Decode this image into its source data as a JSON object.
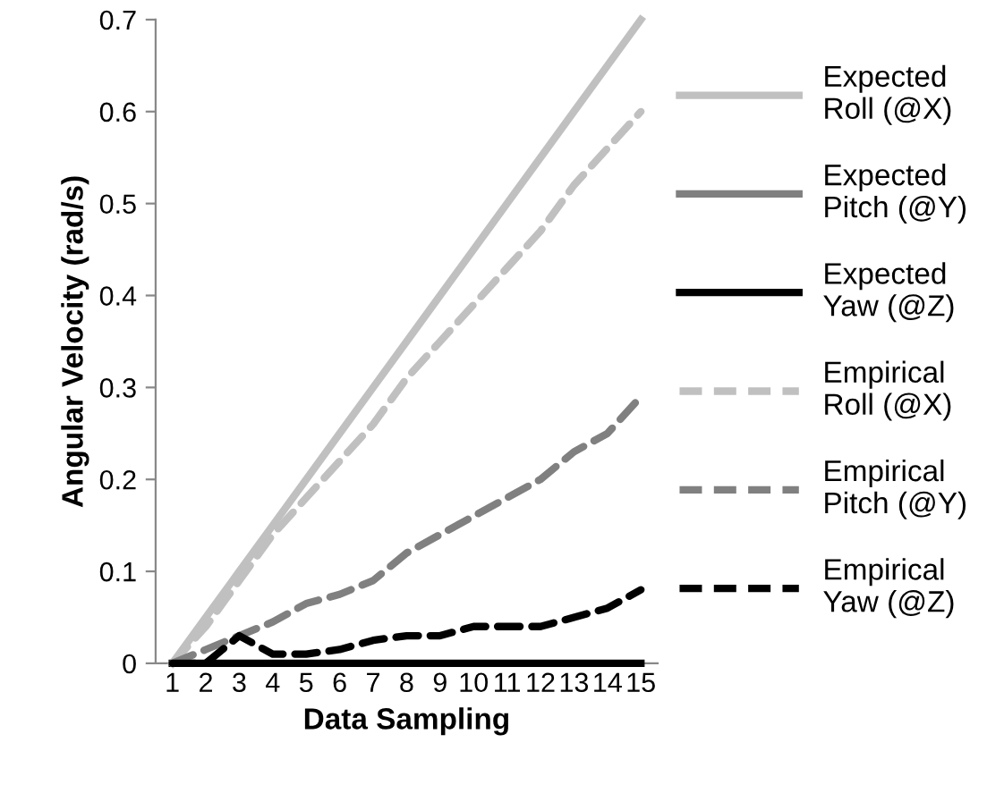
{
  "chart_data": {
    "type": "line",
    "xlabel": "Data Sampling",
    "ylabel": "Angular Velocity (rad/s)",
    "categories": [
      "1",
      "2",
      "3",
      "4",
      "5",
      "6",
      "7",
      "8",
      "9",
      "10",
      "11",
      "12",
      "13",
      "14",
      "15"
    ],
    "ylim": [
      0,
      0.7
    ],
    "yticks": [
      0,
      0.1,
      0.2,
      0.3,
      0.4,
      0.5,
      0.6,
      0.7
    ],
    "grid": false,
    "legend": "right",
    "marker": "none",
    "series": [
      {
        "name": "Expected\nRoll (@X)",
        "color": "#c0c0c0",
        "line_style": "solid",
        "values": [
          0,
          0.05,
          0.1,
          0.15,
          0.2,
          0.25,
          0.3,
          0.35,
          0.4,
          0.45,
          0.5,
          0.55,
          0.6,
          0.65,
          0.7
        ]
      },
      {
        "name": "Expected\nPitch (@Y)",
        "color": "#808080",
        "line_style": "solid",
        "values": [
          null,
          null,
          null,
          null,
          null,
          null,
          null,
          null,
          null,
          null,
          null,
          null,
          null,
          null,
          null
        ]
      },
      {
        "name": "Expected\nYaw (@Z)",
        "color": "#000000",
        "line_style": "solid",
        "values": [
          0,
          0,
          0,
          0,
          0,
          0,
          0,
          0,
          0,
          0,
          0,
          0,
          0,
          0,
          0
        ]
      },
      {
        "name": "Empirical\nRoll (@X)",
        "color": "#c0c0c0",
        "line_style": "dashed",
        "values": [
          0,
          0.04,
          0.09,
          0.14,
          0.18,
          0.22,
          0.26,
          0.31,
          0.35,
          0.39,
          0.43,
          0.47,
          0.52,
          0.56,
          0.6
        ]
      },
      {
        "name": "Empirical\nPitch (@Y)",
        "color": "#808080",
        "line_style": "dashed",
        "values": [
          0,
          0.015,
          0.03,
          0.045,
          0.065,
          0.075,
          0.09,
          0.12,
          0.14,
          0.16,
          0.18,
          0.2,
          0.23,
          0.25,
          0.29
        ]
      },
      {
        "name": "Empirical\nYaw (@Z)",
        "color": "#000000",
        "line_style": "dashed",
        "values": [
          0,
          0,
          0.03,
          0.01,
          0.01,
          0.015,
          0.025,
          0.03,
          0.03,
          0.04,
          0.04,
          0.04,
          0.05,
          0.06,
          0.08
        ]
      }
    ]
  }
}
